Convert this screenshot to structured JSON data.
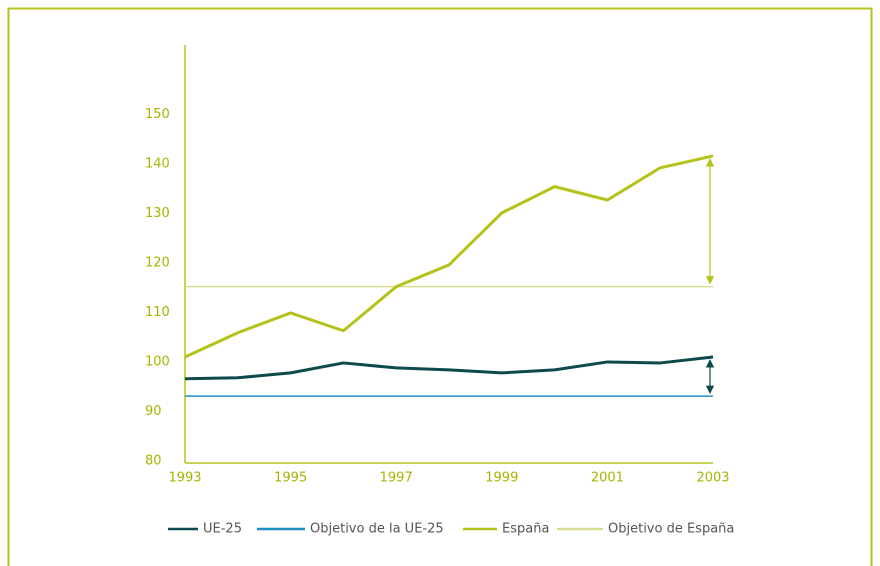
{
  "chart_data": {
    "type": "line",
    "x": [
      1993,
      1994,
      1995,
      1996,
      1997,
      1998,
      1999,
      2000,
      2001,
      2002,
      2003
    ],
    "series": [
      {
        "name": "UE-25",
        "color": "#0e4a4c",
        "values": [
          96.6,
          96.8,
          97.8,
          99.8,
          98.8,
          98.4,
          97.8,
          98.4,
          100.0,
          99.8,
          101.0
        ]
      },
      {
        "name": "España",
        "color": "#b5c21a",
        "values": [
          101.0,
          105.9,
          109.9,
          106.3,
          115.2,
          119.6,
          130.1,
          135.4,
          132.7,
          139.2,
          141.6
        ]
      }
    ],
    "reference_lines": [
      {
        "name": "Objetivo de la UE-25",
        "color": "#1f8fc2",
        "value": 93.1
      },
      {
        "name": "Objetivo de España",
        "color": "#d9dd93",
        "value": 115.2
      }
    ],
    "legend_order": [
      "UE-25",
      "Objetivo de la UE-25",
      "España",
      "Objetivo de España"
    ],
    "xlim": [
      1993,
      2003
    ],
    "xticks": [
      1993,
      1995,
      1997,
      1999,
      2001,
      2003
    ],
    "ylim": [
      80,
      164
    ],
    "yticks": [
      80,
      90,
      100,
      110,
      120,
      130,
      140,
      150
    ],
    "grid": false,
    "legend": "bottom"
  }
}
